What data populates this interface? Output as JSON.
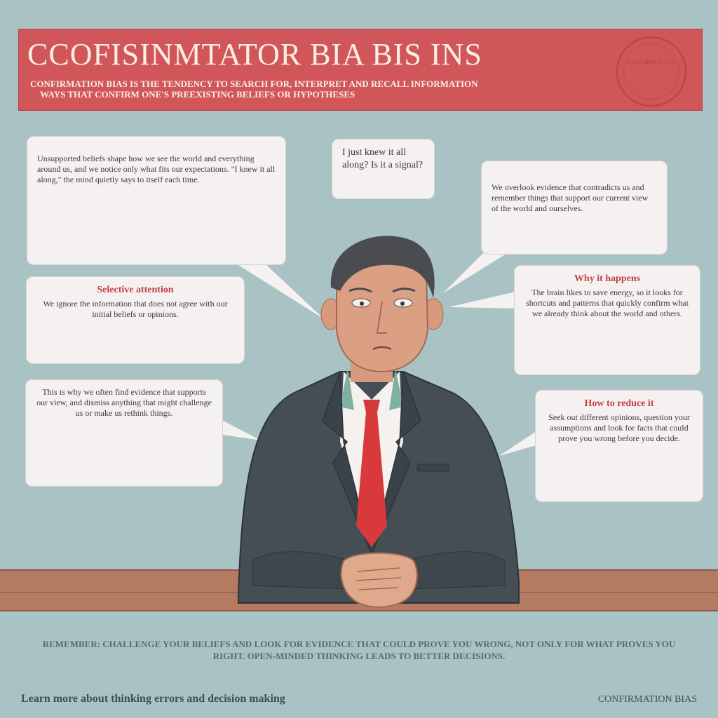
{
  "banner": {
    "title": "CCOFISINMTATOR BIA  BIS INS",
    "subtitle_line1": "CONFIRMATION BIAS IS THE TENDENCY TO SEARCH FOR, INTERPRET AND RECALL INFORMATION",
    "subtitle_line2": "WAYS THAT CONFIRM ONE'S PREEXISTING BELIEFS OR HYPOTHESES",
    "seal_text": "CONFIRMATION",
    "color": "#d0565a"
  },
  "bubbles": [
    {
      "heading": "",
      "body": "Unsupported beliefs shape how we see the world and everything around us, and we notice only what fits our expectations. \"I knew it all along,\" the mind quietly says to itself each time."
    },
    {
      "heading": "",
      "body": "I just knew it all along? Is it a signal?"
    },
    {
      "heading": "",
      "body": "We overlook evidence that contradicts us and remember things that support our current view of the world and ourselves."
    },
    {
      "heading": "Selective attention",
      "body": "We ignore the information that does not agree with our initial beliefs or opinions."
    },
    {
      "heading": "Why it happens",
      "body": "The brain likes to save energy, so it looks for shortcuts and patterns that quickly confirm what we already think about the world and others."
    },
    {
      "heading": "",
      "body": "This is why we often find evidence that supports our view, and dismiss anything that might challenge us or make us rethink things."
    },
    {
      "heading": "How to reduce it",
      "body": "Seek out different opinions, question your assumptions and look for facts that could prove you wrong before you decide."
    }
  ],
  "footer": {
    "text": "REMEMBER: CHALLENGE YOUR BELIEFS AND LOOK FOR EVIDENCE THAT COULD PROVE YOU WRONG, NOT ONLY FOR WHAT PROVES YOU RIGHT. OPEN-MINDED THINKING LEADS TO BETTER DECISIONS.",
    "left": "Learn more about thinking errors and decision making",
    "right": "CONFIRMATION BIAS"
  }
}
